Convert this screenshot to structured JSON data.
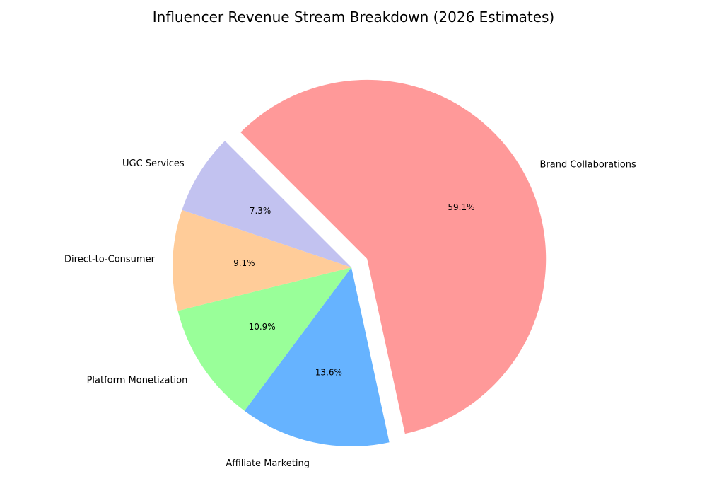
{
  "chart_data": {
    "type": "pie",
    "title": "Influencer Revenue Stream Breakdown (2026 Estimates)",
    "start_angle_deg": 135,
    "direction": "clockwise",
    "slices": [
      {
        "label": "Brand Collaborations",
        "value": 59.1,
        "pct_label": "59.1%",
        "color": "#ff9999",
        "exploded": true
      },
      {
        "label": "Affiliate Marketing",
        "value": 13.6,
        "pct_label": "13.6%",
        "color": "#66b3ff",
        "exploded": false
      },
      {
        "label": "Platform Monetization",
        "value": 10.9,
        "pct_label": "10.9%",
        "color": "#99ff99",
        "exploded": false
      },
      {
        "label": "Direct-to-Consumer",
        "value": 9.1,
        "pct_label": "9.1%",
        "color": "#ffcc99",
        "exploded": false
      },
      {
        "label": "UGC Services",
        "value": 7.3,
        "pct_label": "7.3%",
        "color": "#c2c2f0",
        "exploded": false
      }
    ]
  }
}
